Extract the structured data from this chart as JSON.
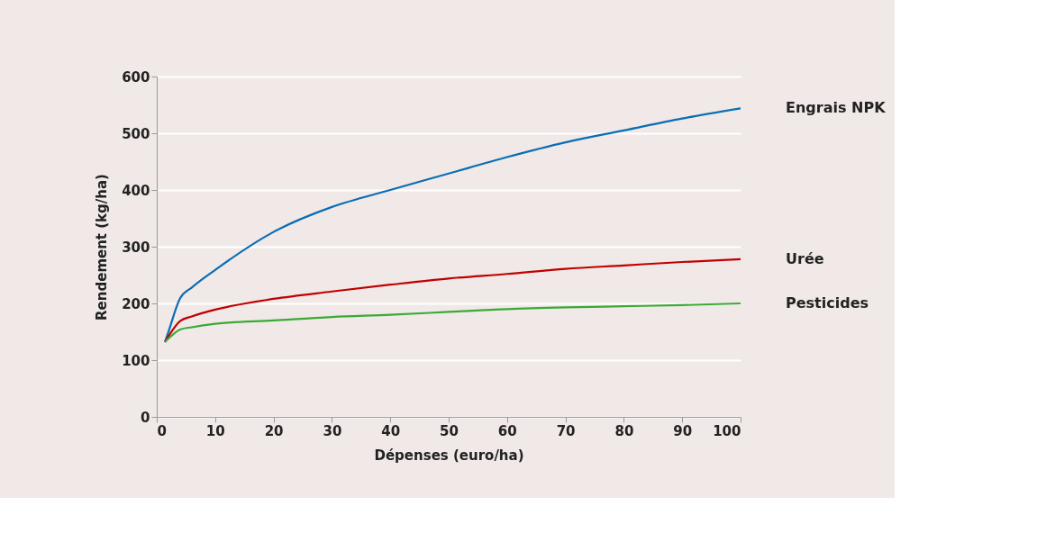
{
  "chart_data": {
    "type": "line",
    "xlabel": "Dépenses (euro/ha)",
    "ylabel": "Rendement (kg/ha)",
    "x": [
      1.4,
      2,
      4,
      6,
      10,
      20,
      30,
      40,
      50,
      60,
      70,
      80,
      90,
      100
    ],
    "xlim": [
      0,
      100
    ],
    "xticks": [
      0,
      10,
      20,
      30,
      40,
      50,
      60,
      70,
      80,
      90,
      100
    ],
    "ylim": [
      0,
      600
    ],
    "yticks": [
      0,
      100,
      200,
      300,
      400,
      500,
      600
    ],
    "grid": "y",
    "legend": false,
    "marker": "none",
    "line_style": "solid",
    "series": [
      {
        "name": "Engrais NPK",
        "color": "#0a6db5",
        "values": [
          132,
          150,
          209,
          228,
          259,
          326,
          370,
          400,
          429,
          458,
          484,
          505,
          526,
          544
        ]
      },
      {
        "name": "Urée",
        "color": "#c00000",
        "values": [
          132,
          142,
          169,
          177,
          189,
          208,
          221,
          233,
          244,
          252,
          261,
          267,
          273,
          278
        ]
      },
      {
        "name": "Pesticides",
        "color": "#3aaa35",
        "values": [
          132,
          138,
          154,
          158,
          164,
          170,
          176,
          180,
          185,
          190,
          193,
          195,
          197,
          200
        ]
      }
    ]
  }
}
